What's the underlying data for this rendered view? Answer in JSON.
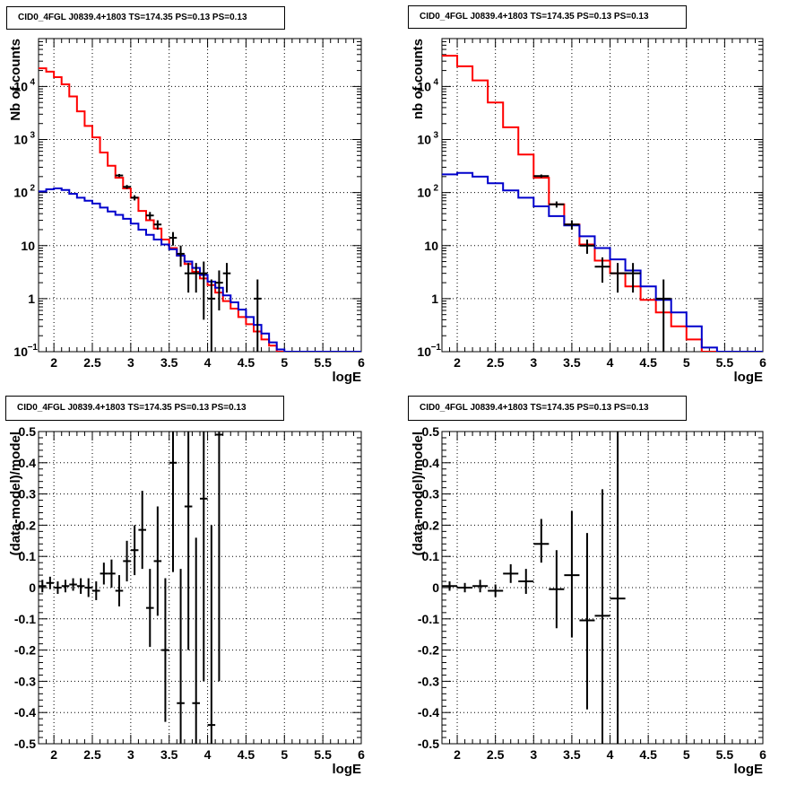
{
  "chart_data": [
    {
      "id": "counts-left",
      "type": "line",
      "title": "CID0_4FGL J0839.4+1803 TS=174.35 PS=0.13 PS=0.13",
      "xlabel": "logE",
      "ylabel": "Nb of counts",
      "xlim": [
        1.8,
        6.0
      ],
      "ylim": [
        0.1,
        80000
      ],
      "yscale": "log",
      "grid": true,
      "xticks": [
        "2",
        "2.5",
        "3",
        "3.5",
        "4",
        "4.5",
        "5",
        "5.5",
        "6"
      ],
      "series": [
        {
          "color": "#ff0000",
          "kind": "step",
          "x_edges": [
            1.8,
            1.9,
            2.0,
            2.1,
            2.2,
            2.3,
            2.4,
            2.5,
            2.6,
            2.7,
            2.8,
            2.9,
            3.0,
            3.1,
            3.2,
            3.3,
            3.4,
            3.5,
            3.6,
            3.7,
            3.8,
            3.9,
            4.0,
            4.1,
            4.2,
            4.3,
            4.4,
            4.5,
            4.6,
            4.7,
            4.8,
            4.9,
            5.0,
            5.1,
            5.2,
            5.3,
            5.4,
            5.5,
            5.6,
            5.7,
            5.8,
            5.9,
            6.0
          ],
          "values": [
            22000,
            19000,
            15000,
            11000,
            6500,
            3400,
            1800,
            1100,
            570,
            320,
            190,
            120,
            80,
            45,
            30,
            21,
            13,
            9,
            6.5,
            4.5,
            3.2,
            2.4,
            1.8,
            1.3,
            0.9,
            0.65,
            0.45,
            0.33,
            0.24,
            0.17,
            0.13,
            0.1,
            0.1,
            0.1,
            0.1,
            0.1,
            0.1,
            0.1,
            0.1,
            0.1,
            0.1,
            0.1
          ]
        },
        {
          "color": "#0000cc",
          "kind": "step",
          "x_edges": [
            1.8,
            1.9,
            2.0,
            2.1,
            2.2,
            2.3,
            2.4,
            2.5,
            2.6,
            2.7,
            2.8,
            2.9,
            3.0,
            3.1,
            3.2,
            3.3,
            3.4,
            3.5,
            3.6,
            3.7,
            3.8,
            3.9,
            4.0,
            4.1,
            4.2,
            4.3,
            4.4,
            4.5,
            4.6,
            4.7,
            4.8,
            4.9,
            5.0,
            5.1,
            5.2,
            5.3,
            5.4,
            5.5,
            5.6,
            5.7,
            5.8,
            5.9,
            6.0
          ],
          "values": [
            105,
            115,
            120,
            112,
            95,
            80,
            70,
            62,
            52,
            44,
            38,
            32,
            26,
            20,
            16,
            13,
            10.5,
            8.5,
            6.5,
            5.0,
            3.8,
            2.8,
            2.1,
            1.6,
            1.15,
            0.85,
            0.62,
            0.45,
            0.32,
            0.22,
            0.15,
            0.11,
            0.1,
            0.1,
            0.1,
            0.1,
            0.1,
            0.1,
            0.1,
            0.1,
            0.1,
            0.1
          ]
        },
        {
          "color": "#000000",
          "kind": "points",
          "x_halfwidth": 0.05,
          "points": [
            {
              "x": 2.85,
              "y": 210,
              "lo": 196,
              "hi": 224
            },
            {
              "x": 2.95,
              "y": 128,
              "lo": 117,
              "hi": 139
            },
            {
              "x": 3.05,
              "y": 80,
              "lo": 71,
              "hi": 89
            },
            {
              "x": 3.25,
              "y": 37,
              "lo": 31,
              "hi": 43
            },
            {
              "x": 3.35,
              "y": 25,
              "lo": 20,
              "hi": 30
            },
            {
              "x": 3.55,
              "y": 14,
              "lo": 10,
              "hi": 18
            },
            {
              "x": 3.65,
              "y": 7,
              "lo": 4,
              "hi": 10
            },
            {
              "x": 3.75,
              "y": 3,
              "lo": 1.3,
              "hi": 4.7
            },
            {
              "x": 3.85,
              "y": 3,
              "lo": 1.3,
              "hi": 4.7
            },
            {
              "x": 3.95,
              "y": 3,
              "lo": 0.4,
              "hi": 5
            },
            {
              "x": 4.05,
              "y": 1,
              "lo": 0.1,
              "hi": 2.3
            },
            {
              "x": 4.15,
              "y": 2,
              "lo": 0.6,
              "hi": 3.4
            },
            {
              "x": 4.25,
              "y": 3,
              "lo": 1.3,
              "hi": 4.7
            },
            {
              "x": 4.65,
              "y": 1,
              "lo": 0.1,
              "hi": 2.3
            }
          ]
        }
      ]
    },
    {
      "id": "counts-right",
      "type": "line",
      "title": "CID0_4FGL J0839.4+1803 TS=174.35 PS=0.13 PS=0.13",
      "xlabel": "logE",
      "ylabel": "nb of counts",
      "xlim": [
        1.8,
        6.0
      ],
      "ylim": [
        0.1,
        80000
      ],
      "yscale": "log",
      "grid": true,
      "xticks": [
        "2",
        "2.5",
        "3",
        "3.5",
        "4",
        "4.5",
        "5",
        "5.5",
        "6"
      ],
      "series": [
        {
          "color": "#ff0000",
          "kind": "step",
          "x_edges": [
            1.8,
            2.0,
            2.2,
            2.4,
            2.6,
            2.8,
            3.0,
            3.2,
            3.4,
            3.6,
            3.8,
            4.0,
            4.2,
            4.4,
            4.6,
            4.8,
            5.0,
            5.2,
            5.4,
            5.6,
            5.8,
            6.0
          ],
          "values": [
            38000,
            24000,
            13000,
            5000,
            1700,
            520,
            190,
            60,
            25,
            10.5,
            5.2,
            3.0,
            1.7,
            0.95,
            0.55,
            0.3,
            0.17,
            0.1,
            0.1,
            0.1,
            0.1
          ]
        },
        {
          "color": "#0000cc",
          "kind": "step",
          "x_edges": [
            1.8,
            2.0,
            2.2,
            2.4,
            2.6,
            2.8,
            3.0,
            3.2,
            3.4,
            3.6,
            3.8,
            4.0,
            4.2,
            4.4,
            4.6,
            4.8,
            5.0,
            5.2,
            5.4,
            5.6,
            5.8,
            6.0
          ],
          "values": [
            220,
            235,
            200,
            150,
            110,
            80,
            55,
            36,
            24,
            15,
            9,
            5.5,
            3.4,
            1.7,
            0.95,
            0.55,
            0.3,
            0.12,
            0.1,
            0.1,
            0.1
          ]
        },
        {
          "color": "#000000",
          "kind": "points",
          "x_halfwidth": 0.1,
          "points": [
            {
              "x": 3.1,
              "y": 205,
              "lo": 191,
              "hi": 219
            },
            {
              "x": 3.3,
              "y": 60,
              "lo": 52,
              "hi": 68
            },
            {
              "x": 3.5,
              "y": 25,
              "lo": 20,
              "hi": 30
            },
            {
              "x": 3.7,
              "y": 10,
              "lo": 7,
              "hi": 13
            },
            {
              "x": 3.9,
              "y": 4,
              "lo": 2,
              "hi": 6
            },
            {
              "x": 4.1,
              "y": 3,
              "lo": 1.3,
              "hi": 4.7
            },
            {
              "x": 4.3,
              "y": 3,
              "lo": 1.3,
              "hi": 4.7
            },
            {
              "x": 4.7,
              "y": 1,
              "lo": 0.1,
              "hi": 2.3
            }
          ]
        }
      ]
    },
    {
      "id": "residuals-left",
      "type": "scatter",
      "title": "CID0_4FGL J0839.4+1803 TS=174.35 PS=0.13 PS=0.13",
      "xlabel": "logE",
      "ylabel": "(data-model)/model",
      "xlim": [
        1.8,
        6.0
      ],
      "ylim": [
        -0.5,
        0.5
      ],
      "grid": true,
      "xticks": [
        "2",
        "2.5",
        "3",
        "3.5",
        "4",
        "4.5",
        "5",
        "5.5",
        "6"
      ],
      "yticks": [
        "-0.5",
        "-0.4",
        "-0.3",
        "-0.2",
        "-0.1",
        "0",
        "0.1",
        "0.2",
        "0.3",
        "0.4",
        "0.5"
      ],
      "series": [
        {
          "color": "#000000",
          "kind": "points",
          "x_halfwidth": 0.05,
          "points": [
            {
              "x": 1.85,
              "y": 0.005,
              "lo": -0.015,
              "hi": 0.025
            },
            {
              "x": 1.95,
              "y": 0.015,
              "lo": -0.005,
              "hi": 0.035
            },
            {
              "x": 2.05,
              "y": 0.0,
              "lo": -0.02,
              "hi": 0.02
            },
            {
              "x": 2.15,
              "y": 0.005,
              "lo": -0.015,
              "hi": 0.025
            },
            {
              "x": 2.25,
              "y": 0.01,
              "lo": -0.01,
              "hi": 0.03
            },
            {
              "x": 2.35,
              "y": 0.005,
              "lo": -0.02,
              "hi": 0.03
            },
            {
              "x": 2.45,
              "y": 0.0,
              "lo": -0.03,
              "hi": 0.03
            },
            {
              "x": 2.55,
              "y": -0.01,
              "lo": -0.04,
              "hi": 0.02
            },
            {
              "x": 2.65,
              "y": 0.045,
              "lo": 0.01,
              "hi": 0.08
            },
            {
              "x": 2.75,
              "y": 0.045,
              "lo": 0.0,
              "hi": 0.09
            },
            {
              "x": 2.85,
              "y": -0.01,
              "lo": -0.06,
              "hi": 0.04
            },
            {
              "x": 2.95,
              "y": 0.085,
              "lo": 0.02,
              "hi": 0.15
            },
            {
              "x": 3.05,
              "y": 0.12,
              "lo": 0.04,
              "hi": 0.2
            },
            {
              "x": 3.15,
              "y": 0.185,
              "lo": 0.06,
              "hi": 0.31
            },
            {
              "x": 3.25,
              "y": -0.065,
              "lo": -0.19,
              "hi": 0.06
            },
            {
              "x": 3.35,
              "y": 0.085,
              "lo": -0.09,
              "hi": 0.26
            },
            {
              "x": 3.45,
              "y": -0.2,
              "lo": -0.43,
              "hi": 0.03
            },
            {
              "x": 3.55,
              "y": 0.4,
              "lo": 0.05,
              "hi": 0.75
            },
            {
              "x": 3.65,
              "y": -0.37,
              "lo": -0.8,
              "hi": 0.06
            },
            {
              "x": 3.75,
              "y": 0.26,
              "lo": -0.2,
              "hi": 0.72
            },
            {
              "x": 3.85,
              "y": -0.37,
              "lo": -0.9,
              "hi": 0.16
            },
            {
              "x": 3.95,
              "y": 0.285,
              "lo": -0.3,
              "hi": 0.85
            },
            {
              "x": 4.05,
              "y": -0.44,
              "lo": -1.1,
              "hi": 0.2
            },
            {
              "x": 4.15,
              "y": 0.49,
              "lo": -0.3,
              "hi": 1.3
            }
          ]
        }
      ]
    },
    {
      "id": "residuals-right",
      "type": "scatter",
      "title": "CID0_4FGL J0839.4+1803 TS=174.35 PS=0.13 PS=0.13",
      "xlabel": "logE",
      "ylabel": "(data-model)/model",
      "xlim": [
        1.8,
        6.0
      ],
      "ylim": [
        -0.5,
        0.5
      ],
      "grid": true,
      "xticks": [
        "2",
        "2.5",
        "3",
        "3.5",
        "4",
        "4.5",
        "5",
        "5.5",
        "6"
      ],
      "yticks": [
        "-0.5",
        "-0.4",
        "-0.3",
        "-0.2",
        "-0.1",
        "0",
        "0.1",
        "0.2",
        "0.3",
        "0.4",
        "0.5"
      ],
      "series": [
        {
          "color": "#000000",
          "kind": "points",
          "x_halfwidth": 0.1,
          "points": [
            {
              "x": 1.9,
              "y": 0.005,
              "lo": -0.01,
              "hi": 0.02
            },
            {
              "x": 2.1,
              "y": 0.0,
              "lo": -0.015,
              "hi": 0.015
            },
            {
              "x": 2.3,
              "y": 0.005,
              "lo": -0.015,
              "hi": 0.025
            },
            {
              "x": 2.5,
              "y": -0.01,
              "lo": -0.03,
              "hi": 0.01
            },
            {
              "x": 2.7,
              "y": 0.045,
              "lo": 0.015,
              "hi": 0.075
            },
            {
              "x": 2.9,
              "y": 0.02,
              "lo": -0.02,
              "hi": 0.06
            },
            {
              "x": 3.1,
              "y": 0.14,
              "lo": 0.08,
              "hi": 0.22
            },
            {
              "x": 3.3,
              "y": -0.005,
              "lo": -0.13,
              "hi": 0.12
            },
            {
              "x": 3.5,
              "y": 0.04,
              "lo": -0.16,
              "hi": 0.245
            },
            {
              "x": 3.7,
              "y": -0.105,
              "lo": -0.39,
              "hi": 0.175
            },
            {
              "x": 3.9,
              "y": -0.09,
              "lo": -0.5,
              "hi": 0.315
            },
            {
              "x": 4.1,
              "y": -0.035,
              "lo": -0.6,
              "hi": 0.9
            }
          ]
        }
      ]
    }
  ]
}
